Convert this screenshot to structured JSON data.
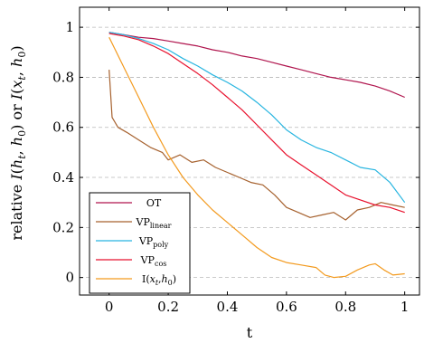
{
  "chart_data": {
    "type": "line",
    "xlabel": "t",
    "ylabel": "relative I(h_t, h_0) or I(x_t, h_0)",
    "ylabel_parts": {
      "prefix": "relative ",
      "m1": "I",
      "p1": "(",
      "v1": "h",
      "s1": "t",
      "c1": ", ",
      "v2": "h",
      "s2": "0",
      "p2": ") or ",
      "m2": "I",
      "p3": "(",
      "v3": "x",
      "s3": "t",
      "c2": ", ",
      "v4": "h",
      "s4": "0",
      "p4": ")"
    },
    "xlim": [
      -0.1,
      1.05
    ],
    "ylim": [
      -0.07,
      1.08
    ],
    "x_ticks": [
      0,
      0.2,
      0.4,
      0.6,
      0.8,
      1
    ],
    "x_tick_labels": [
      "0",
      "0.2",
      "0.4",
      "0.6",
      "0.8",
      "1"
    ],
    "y_ticks": [
      0,
      0.2,
      0.4,
      0.6,
      0.8,
      1
    ],
    "y_tick_labels": [
      "0",
      "0.2",
      "0.4",
      "0.6",
      "0.8",
      "1"
    ],
    "grid": "horizontal-dashed",
    "legend_position": "bottom-left",
    "series": [
      {
        "name": "OT",
        "label": {
          "main": "OT"
        },
        "color": "#b0154e",
        "x": [
          0,
          0.05,
          0.1,
          0.15,
          0.2,
          0.25,
          0.3,
          0.35,
          0.4,
          0.45,
          0.5,
          0.55,
          0.6,
          0.65,
          0.7,
          0.75,
          0.8,
          0.85,
          0.9,
          0.95,
          1
        ],
        "y": [
          0.98,
          0.97,
          0.96,
          0.955,
          0.945,
          0.935,
          0.925,
          0.91,
          0.9,
          0.885,
          0.875,
          0.86,
          0.845,
          0.83,
          0.815,
          0.8,
          0.79,
          0.78,
          0.765,
          0.745,
          0.72
        ]
      },
      {
        "name": "VP_linear",
        "label": {
          "main": "VP",
          "sub": "linear"
        },
        "color": "#a6612e",
        "x": [
          0,
          0.01,
          0.03,
          0.06,
          0.1,
          0.14,
          0.18,
          0.2,
          0.24,
          0.28,
          0.32,
          0.36,
          0.4,
          0.44,
          0.48,
          0.52,
          0.56,
          0.6,
          0.64,
          0.68,
          0.72,
          0.76,
          0.8,
          0.84,
          0.88,
          0.92,
          0.96,
          1
        ],
        "y": [
          0.83,
          0.64,
          0.6,
          0.58,
          0.55,
          0.52,
          0.5,
          0.47,
          0.49,
          0.46,
          0.47,
          0.44,
          0.42,
          0.4,
          0.38,
          0.37,
          0.33,
          0.28,
          0.26,
          0.24,
          0.25,
          0.26,
          0.23,
          0.27,
          0.28,
          0.3,
          0.29,
          0.28
        ]
      },
      {
        "name": "VP_poly",
        "label": {
          "main": "VP",
          "sub": "poly"
        },
        "color": "#27b5e0",
        "x": [
          0,
          0.05,
          0.1,
          0.15,
          0.2,
          0.25,
          0.3,
          0.35,
          0.4,
          0.45,
          0.5,
          0.55,
          0.6,
          0.65,
          0.7,
          0.75,
          0.8,
          0.85,
          0.9,
          0.95,
          1
        ],
        "y": [
          0.98,
          0.97,
          0.955,
          0.935,
          0.91,
          0.875,
          0.845,
          0.81,
          0.78,
          0.745,
          0.7,
          0.65,
          0.59,
          0.55,
          0.52,
          0.5,
          0.47,
          0.44,
          0.43,
          0.38,
          0.3
        ]
      },
      {
        "name": "VP_cos",
        "label": {
          "main": "VP",
          "sub": "cos"
        },
        "color": "#e8112d",
        "x": [
          0,
          0.05,
          0.1,
          0.15,
          0.2,
          0.25,
          0.3,
          0.35,
          0.4,
          0.45,
          0.5,
          0.55,
          0.6,
          0.65,
          0.7,
          0.75,
          0.8,
          0.85,
          0.9,
          0.95,
          1
        ],
        "y": [
          0.975,
          0.965,
          0.95,
          0.925,
          0.895,
          0.855,
          0.815,
          0.77,
          0.72,
          0.67,
          0.61,
          0.55,
          0.49,
          0.45,
          0.41,
          0.37,
          0.33,
          0.31,
          0.29,
          0.28,
          0.26
        ]
      },
      {
        "name": "I(x_t, h_0)",
        "label": {
          "main": "I(",
          "v1": "x",
          "s1": "t",
          "c": ",",
          "v2": "h",
          "s2": "0",
          "end": ")"
        },
        "color": "#f39a1e",
        "x": [
          0,
          0.05,
          0.1,
          0.15,
          0.2,
          0.25,
          0.3,
          0.35,
          0.4,
          0.45,
          0.5,
          0.55,
          0.6,
          0.65,
          0.7,
          0.73,
          0.76,
          0.8,
          0.84,
          0.88,
          0.9,
          0.93,
          0.96,
          1
        ],
        "y": [
          0.96,
          0.84,
          0.72,
          0.6,
          0.49,
          0.4,
          0.33,
          0.27,
          0.22,
          0.17,
          0.12,
          0.08,
          0.06,
          0.05,
          0.04,
          0.01,
          0.0,
          0.005,
          0.03,
          0.05,
          0.055,
          0.03,
          0.01,
          0.015
        ]
      }
    ]
  }
}
